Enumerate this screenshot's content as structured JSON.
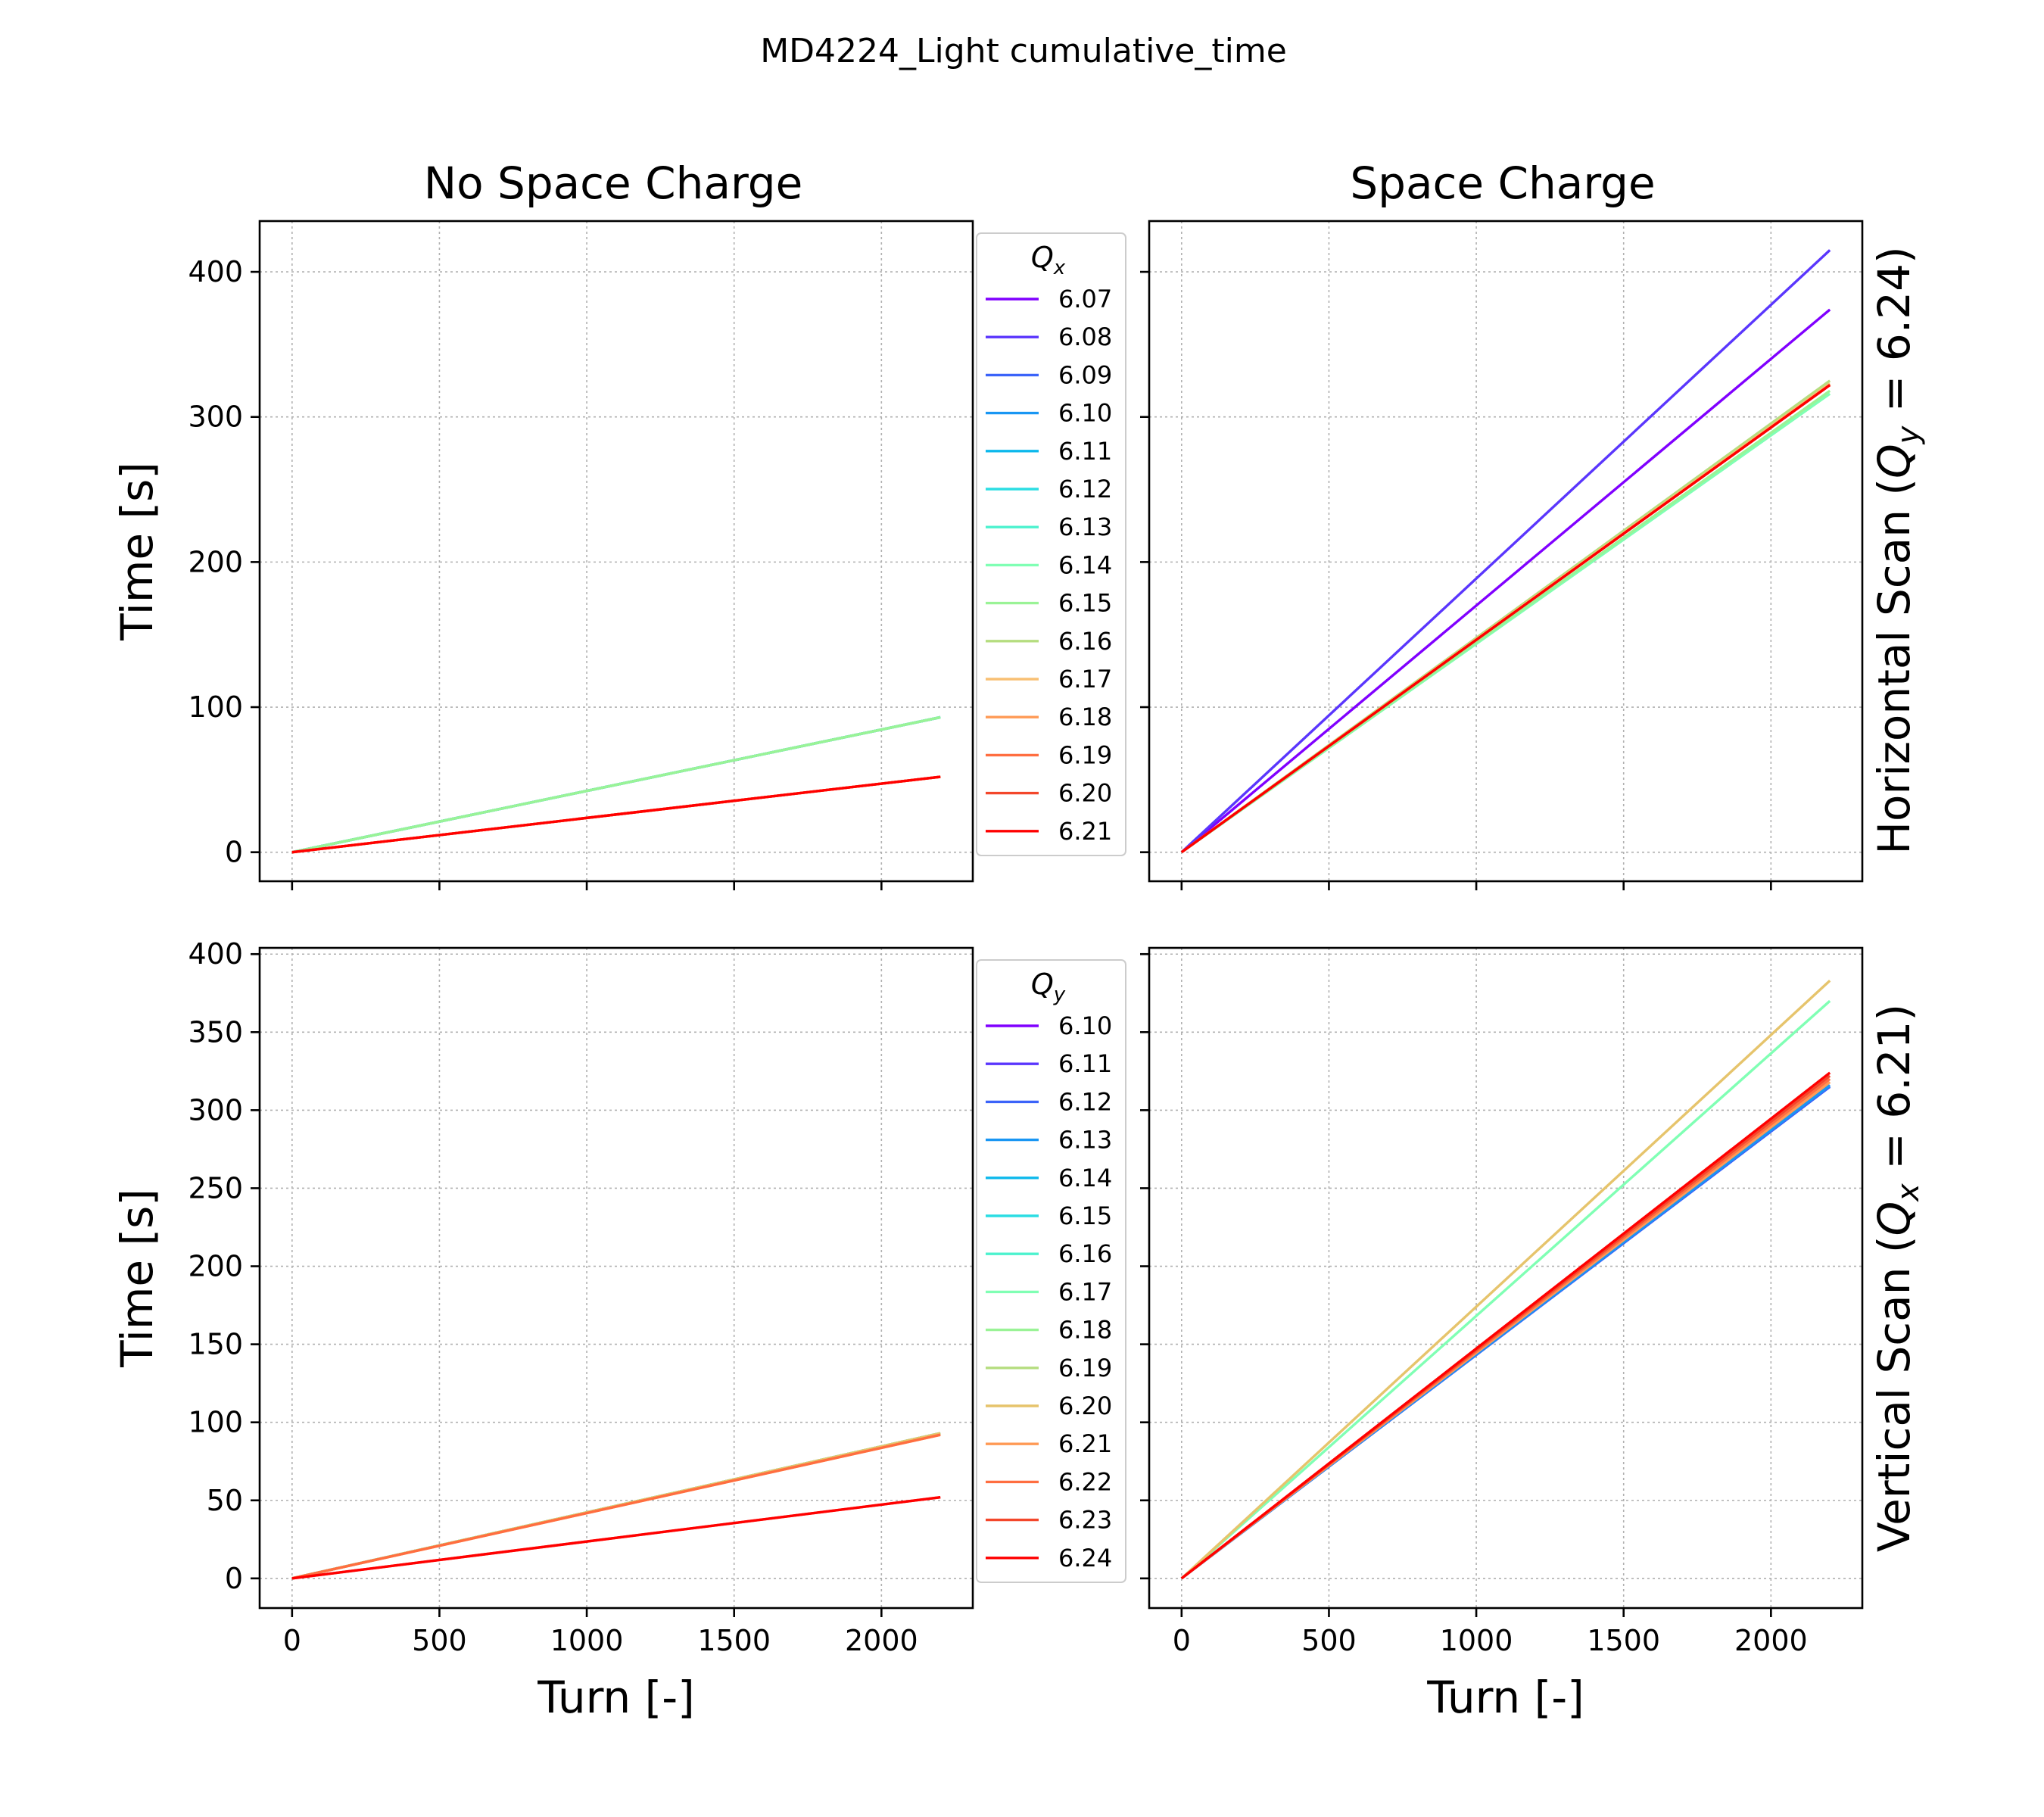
{
  "figure": {
    "suptitle": "MD4224_Light cumulative_time",
    "col_titles": [
      "No Space Charge",
      "Space Charge"
    ],
    "row_labels": [
      {
        "prefix": "Horizontal Scan (",
        "q": "Q",
        "sub": "y",
        "suffix": " = 6.24)"
      },
      {
        "prefix": "Vertical Scan (",
        "q": "Q",
        "sub": "x",
        "suffix": " = 6.21)"
      }
    ]
  },
  "chart_data": [
    {
      "type": "line",
      "panel": "top-left",
      "title": "No Space Charge",
      "xlabel": "",
      "ylabel": "Time [s]",
      "xlim": [
        -110,
        2310
      ],
      "ylim": [
        -20,
        435
      ],
      "xticks": [
        0,
        500,
        1000,
        1500,
        2000
      ],
      "yticks": [
        0,
        100,
        200,
        300,
        400
      ],
      "show_xticklabels": false,
      "show_yticklabels": true,
      "grid": true,
      "legend": {
        "title": "Q",
        "title_sub": "x",
        "placement": "right-outside"
      },
      "series": [
        {
          "name": "6.07",
          "color": "#8000ff",
          "x": [
            0,
            2200
          ],
          "y": [
            0,
            93.0
          ]
        },
        {
          "name": "6.08",
          "color": "#5a36fd",
          "x": [
            0,
            2200
          ],
          "y": [
            0,
            93.0
          ]
        },
        {
          "name": "6.09",
          "color": "#3b63f9",
          "x": [
            0,
            2200
          ],
          "y": [
            0,
            93.0
          ]
        },
        {
          "name": "6.10",
          "color": "#1996f3",
          "x": [
            0,
            2200
          ],
          "y": [
            0,
            93.0
          ]
        },
        {
          "name": "6.11",
          "color": "#0cb8ec",
          "x": [
            0,
            2200
          ],
          "y": [
            0,
            93.0
          ]
        },
        {
          "name": "6.12",
          "color": "#2cdde3",
          "x": [
            0,
            2200
          ],
          "y": [
            0,
            93.0
          ]
        },
        {
          "name": "6.13",
          "color": "#4cf2ce",
          "x": [
            0,
            2200
          ],
          "y": [
            0,
            93.0
          ]
        },
        {
          "name": "6.14",
          "color": "#80ffb4",
          "x": [
            0,
            2200
          ],
          "y": [
            0,
            93.0
          ]
        },
        {
          "name": "6.15",
          "color": "#9af396",
          "x": [
            0,
            2200
          ],
          "y": [
            0,
            93.0
          ]
        },
        {
          "name": "6.16",
          "color": "#b5dd7f",
          "x": [
            0,
            2200
          ],
          "y": [
            0,
            52.0
          ]
        },
        {
          "name": "6.17",
          "color": "#f8c074",
          "x": [
            0,
            2200
          ],
          "y": [
            0,
            52.0
          ]
        },
        {
          "name": "6.18",
          "color": "#ff9a55",
          "x": [
            0,
            2200
          ],
          "y": [
            0,
            52.0
          ]
        },
        {
          "name": "6.19",
          "color": "#ff6e40",
          "x": [
            0,
            2200
          ],
          "y": [
            0,
            52.0
          ]
        },
        {
          "name": "6.20",
          "color": "#f3472b",
          "x": [
            0,
            2200
          ],
          "y": [
            0,
            52.0
          ]
        },
        {
          "name": "6.21",
          "color": "#ff0000",
          "x": [
            0,
            2200
          ],
          "y": [
            0,
            52.0
          ]
        }
      ]
    },
    {
      "type": "line",
      "panel": "top-right",
      "title": "Space Charge",
      "xlabel": "",
      "ylabel": "",
      "xlim": [
        -110,
        2310
      ],
      "ylim": [
        -20,
        435
      ],
      "xticks": [
        0,
        500,
        1000,
        1500,
        2000
      ],
      "yticks": [
        0,
        100,
        200,
        300,
        400
      ],
      "show_xticklabels": false,
      "show_yticklabels": false,
      "grid": true,
      "series": [
        {
          "name": "6.07",
          "color": "#8000ff",
          "x": [
            0,
            2200
          ],
          "y": [
            0,
            374.0
          ]
        },
        {
          "name": "6.08",
          "color": "#5a36fd",
          "x": [
            0,
            2200
          ],
          "y": [
            0,
            415.0
          ]
        },
        {
          "name": "6.14",
          "color": "#80ffb4",
          "x": [
            0,
            2200
          ],
          "y": [
            0,
            316.0
          ]
        },
        {
          "name": "6.15",
          "color": "#9af396",
          "x": [
            0,
            2200
          ],
          "y": [
            0,
            318.0
          ]
        },
        {
          "name": "6.16",
          "color": "#b5dd7f",
          "x": [
            0,
            2200
          ],
          "y": [
            0,
            325.0
          ]
        },
        {
          "name": "6.17",
          "color": "#f8c074",
          "x": [
            0,
            2200
          ],
          "y": [
            0,
            323.0
          ]
        },
        {
          "name": "6.20",
          "color": "#f3472b",
          "x": [
            0,
            2200
          ],
          "y": [
            0,
            322.0
          ]
        },
        {
          "name": "6.21",
          "color": "#ff0000",
          "x": [
            0,
            2200
          ],
          "y": [
            0,
            322.0
          ]
        }
      ]
    },
    {
      "type": "line",
      "panel": "bottom-left",
      "title": "",
      "xlabel": "Turn [-]",
      "ylabel": "Time [s]",
      "xlim": [
        -110,
        2310
      ],
      "ylim": [
        -19,
        404
      ],
      "xticks": [
        0,
        500,
        1000,
        1500,
        2000
      ],
      "yticks": [
        0,
        50,
        100,
        150,
        200,
        250,
        300,
        350,
        400
      ],
      "show_xticklabels": true,
      "show_yticklabels": true,
      "grid": true,
      "legend": {
        "title": "Q",
        "title_sub": "y",
        "placement": "right-outside"
      },
      "series": [
        {
          "name": "6.10",
          "color": "#8000ff",
          "x": [
            0,
            2200
          ],
          "y": [
            0,
            93.0
          ]
        },
        {
          "name": "6.11",
          "color": "#5a36fd",
          "x": [
            0,
            2200
          ],
          "y": [
            0,
            93.0
          ]
        },
        {
          "name": "6.12",
          "color": "#3b63f9",
          "x": [
            0,
            2200
          ],
          "y": [
            0,
            93.0
          ]
        },
        {
          "name": "6.13",
          "color": "#1996f3",
          "x": [
            0,
            2200
          ],
          "y": [
            0,
            93.0
          ]
        },
        {
          "name": "6.14",
          "color": "#0cb8ec",
          "x": [
            0,
            2200
          ],
          "y": [
            0,
            93.0
          ]
        },
        {
          "name": "6.15",
          "color": "#2cdde3",
          "x": [
            0,
            2200
          ],
          "y": [
            0,
            93.0
          ]
        },
        {
          "name": "6.16",
          "color": "#4cf2ce",
          "x": [
            0,
            2200
          ],
          "y": [
            0,
            93.0
          ]
        },
        {
          "name": "6.17",
          "color": "#80ffb4",
          "x": [
            0,
            2200
          ],
          "y": [
            0,
            93.0
          ]
        },
        {
          "name": "6.18",
          "color": "#9af396",
          "x": [
            0,
            2200
          ],
          "y": [
            0,
            93.0
          ]
        },
        {
          "name": "6.19",
          "color": "#b5dd7f",
          "x": [
            0,
            2200
          ],
          "y": [
            0,
            93.0
          ]
        },
        {
          "name": "6.20",
          "color": "#e6c46c",
          "x": [
            0,
            2200
          ],
          "y": [
            0,
            93.0
          ]
        },
        {
          "name": "6.21",
          "color": "#ff9a55",
          "x": [
            0,
            2200
          ],
          "y": [
            0,
            92.0
          ]
        },
        {
          "name": "6.22",
          "color": "#ff6e40",
          "x": [
            0,
            2200
          ],
          "y": [
            0,
            92.0
          ]
        },
        {
          "name": "6.23",
          "color": "#f3472b",
          "x": [
            0,
            2200
          ],
          "y": [
            0,
            52.0
          ]
        },
        {
          "name": "6.24",
          "color": "#ff0000",
          "x": [
            0,
            2200
          ],
          "y": [
            0,
            52.0
          ]
        }
      ]
    },
    {
      "type": "line",
      "panel": "bottom-right",
      "title": "",
      "xlabel": "Turn [-]",
      "ylabel": "",
      "xlim": [
        -110,
        2310
      ],
      "ylim": [
        -19,
        404
      ],
      "xticks": [
        0,
        500,
        1000,
        1500,
        2000
      ],
      "yticks": [
        0,
        50,
        100,
        150,
        200,
        250,
        300,
        350,
        400
      ],
      "show_xticklabels": true,
      "show_yticklabels": false,
      "grid": true,
      "series": [
        {
          "name": "6.12",
          "color": "#3b63f9",
          "x": [
            0,
            2200
          ],
          "y": [
            0,
            315.0
          ]
        },
        {
          "name": "6.13",
          "color": "#1996f3",
          "x": [
            0,
            2200
          ],
          "y": [
            0,
            316.0
          ]
        },
        {
          "name": "6.17",
          "color": "#80ffb4",
          "x": [
            0,
            2200
          ],
          "y": [
            0,
            370.0
          ]
        },
        {
          "name": "6.20",
          "color": "#e6c46c",
          "x": [
            0,
            2200
          ],
          "y": [
            0,
            383.0
          ]
        },
        {
          "name": "6.21",
          "color": "#ff9a55",
          "x": [
            0,
            2200
          ],
          "y": [
            0,
            318.0
          ]
        },
        {
          "name": "6.22",
          "color": "#ff6e40",
          "x": [
            0,
            2200
          ],
          "y": [
            0,
            320.0
          ]
        },
        {
          "name": "6.23",
          "color": "#f3472b",
          "x": [
            0,
            2200
          ],
          "y": [
            0,
            322.0
          ]
        },
        {
          "name": "6.24",
          "color": "#ff0000",
          "x": [
            0,
            2200
          ],
          "y": [
            0,
            324.0
          ]
        }
      ]
    }
  ]
}
